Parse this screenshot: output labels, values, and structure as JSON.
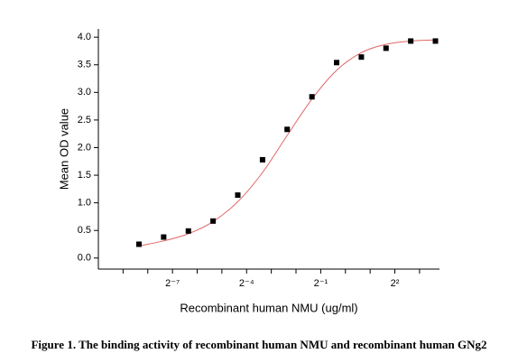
{
  "chart_data": {
    "type": "scatter",
    "caption": "Figure 1. The binding activity of recombinant human NMU and recombinant human GNg2",
    "x_label": "Recombinant human NMU (ug/ml)",
    "y_label": "Mean OD value",
    "x_scale": "log2",
    "x": [
      0.00305,
      0.0061,
      0.0122,
      0.0244,
      0.0488,
      0.0977,
      0.195,
      0.391,
      0.781,
      1.5625,
      3.125,
      6.25,
      12.5
    ],
    "values": [
      0.25,
      0.38,
      0.49,
      0.67,
      1.14,
      1.78,
      2.33,
      2.92,
      3.54,
      3.64,
      3.8,
      3.93,
      3.93
    ],
    "color": "#000000",
    "fit": {
      "color": "#e06666",
      "x": [
        0.00305,
        0.0061,
        0.0122,
        0.0244,
        0.0488,
        0.0977,
        0.195,
        0.391,
        0.781,
        1.5625,
        3.125,
        6.25,
        12.5
      ],
      "values": [
        0.22,
        0.31,
        0.44,
        0.66,
        1.02,
        1.55,
        2.22,
        2.88,
        3.4,
        3.72,
        3.87,
        3.93,
        3.95
      ]
    },
    "xlim": [
      0.0009765625,
      14
    ],
    "xticks": [
      {
        "value": 0.0078125,
        "label": "2⁻⁷"
      },
      {
        "value": 0.0625,
        "label": "2⁻⁴"
      },
      {
        "value": 0.5,
        "label": "2⁻¹"
      },
      {
        "value": 4,
        "label": "2²"
      }
    ],
    "xminorticks": [
      0.001953125,
      0.00390625,
      0.015625,
      0.03125,
      0.125,
      0.25,
      1,
      2,
      8
    ],
    "ylim": [
      -0.2,
      4.15
    ],
    "yticks": [
      {
        "value": 0,
        "label": "0.0"
      },
      0.5,
      {
        "value": 1,
        "label": "1.0"
      },
      1.5,
      {
        "value": 2,
        "label": "2.0"
      },
      2.5,
      {
        "value": 3,
        "label": "3.0"
      },
      3.5,
      {
        "value": 4,
        "label": "4.0"
      }
    ]
  }
}
